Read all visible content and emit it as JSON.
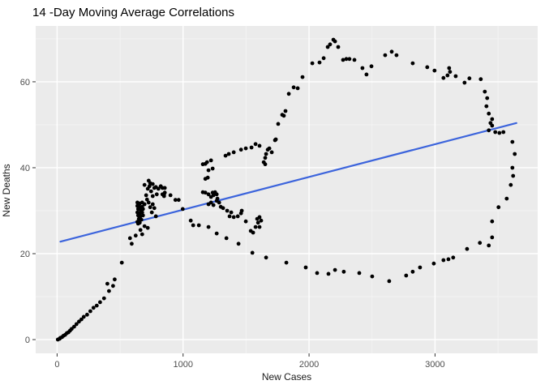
{
  "colors": {
    "figure_bg": "#FFFFFF",
    "panel_bg": "#EBEBEB",
    "grid_major": "#FFFFFF",
    "grid_minor": "#F3F3F3",
    "tick_mark": "#333333",
    "tick_label": "#4D4D4D",
    "point": "#000000",
    "trend": "#3C64DC"
  },
  "chart_data": {
    "type": "scatter",
    "title": "14 -Day Moving Average Correlations",
    "xlabel": "New Cases",
    "ylabel": "New Deaths",
    "xlim": [
      -170,
      3815
    ],
    "ylim": [
      -3.2,
      73
    ],
    "x_ticks": [
      0,
      1000,
      2000,
      3000
    ],
    "x_minor_ticks": [
      500,
      1500,
      2500,
      3500
    ],
    "y_ticks": [
      0,
      20,
      40,
      60
    ],
    "y_minor_ticks": [
      10,
      30,
      50,
      70
    ],
    "grid": "on",
    "legend": "none",
    "trend_line": {
      "x1": 26,
      "y1": 22.8,
      "x2": 3646,
      "y2": 50.4
    },
    "points": [
      [
        6,
        0
      ],
      [
        19,
        0.2
      ],
      [
        26,
        0.4
      ],
      [
        39,
        0.6
      ],
      [
        51,
        0.9
      ],
      [
        64,
        1.1
      ],
      [
        77,
        1.5
      ],
      [
        90,
        1.7
      ],
      [
        103,
        2.1
      ],
      [
        116,
        2.5
      ],
      [
        135,
        3
      ],
      [
        154,
        3.6
      ],
      [
        174,
        4.2
      ],
      [
        193,
        4.7
      ],
      [
        212,
        5.3
      ],
      [
        238,
        5.8
      ],
      [
        264,
        6.6
      ],
      [
        289,
        7.4
      ],
      [
        315,
        7.9
      ],
      [
        341,
        8.7
      ],
      [
        373,
        9.6
      ],
      [
        412,
        11.3
      ],
      [
        444,
        12.5
      ],
      [
        399,
        13
      ],
      [
        457,
        14
      ],
      [
        514,
        17.9
      ],
      [
        592,
        22.3
      ],
      [
        624,
        24.2
      ],
      [
        643,
        27
      ],
      [
        662,
        25.5
      ],
      [
        675,
        24.5
      ],
      [
        694,
        26.4
      ],
      [
        720,
        26
      ],
      [
        579,
        23.6
      ],
      [
        637,
        31.9
      ],
      [
        656,
        31.7
      ],
      [
        675,
        31.9
      ],
      [
        694,
        31.5
      ],
      [
        637,
        31.1
      ],
      [
        656,
        30.9
      ],
      [
        675,
        30.9
      ],
      [
        643,
        30.4
      ],
      [
        662,
        30.2
      ],
      [
        682,
        30.4
      ],
      [
        637,
        29.6
      ],
      [
        656,
        29.4
      ],
      [
        675,
        29.6
      ],
      [
        643,
        28.9
      ],
      [
        662,
        28.7
      ],
      [
        682,
        28.9
      ],
      [
        649,
        28.1
      ],
      [
        669,
        27.9
      ],
      [
        637,
        27.4
      ],
      [
        656,
        27.2
      ],
      [
        739,
        36.4
      ],
      [
        772,
        35.3
      ],
      [
        804,
        35.1
      ],
      [
        836,
        35.3
      ],
      [
        791,
        33.8
      ],
      [
        759,
        33.4
      ],
      [
        849,
        33.4
      ],
      [
        727,
        37
      ],
      [
        694,
        36
      ],
      [
        720,
        35.1
      ],
      [
        759,
        36.2
      ],
      [
        784,
        35.5
      ],
      [
        746,
        34.5
      ],
      [
        733,
        35.7
      ],
      [
        823,
        35.7
      ],
      [
        855,
        35.3
      ],
      [
        849,
        33.8
      ],
      [
        900,
        33.6
      ],
      [
        939,
        32.5
      ],
      [
        965,
        32.5
      ],
      [
        836,
        33.8
      ],
      [
        855,
        34.2
      ],
      [
        727,
        31.9
      ],
      [
        759,
        31.5
      ],
      [
        772,
        30.6
      ],
      [
        752,
        29.6
      ],
      [
        784,
        28.7
      ],
      [
        714,
        32.6
      ],
      [
        739,
        30.8
      ],
      [
        707,
        33.6
      ],
      [
        997,
        30.4
      ],
      [
        1061,
        27.7
      ],
      [
        1080,
        26.6
      ],
      [
        1125,
        26.6
      ],
      [
        1202,
        26.2
      ],
      [
        1267,
        24.7
      ],
      [
        1344,
        23.6
      ],
      [
        1440,
        22.3
      ],
      [
        1550,
        20.2
      ],
      [
        1659,
        19.1
      ],
      [
        1820,
        17.9
      ],
      [
        1974,
        16.8
      ],
      [
        2064,
        15.5
      ],
      [
        2154,
        15.3
      ],
      [
        2206,
        16.2
      ],
      [
        2276,
        15.8
      ],
      [
        2399,
        15.5
      ],
      [
        2501,
        14.7
      ],
      [
        2636,
        13.6
      ],
      [
        2771,
        14.9
      ],
      [
        2823,
        15.8
      ],
      [
        2881,
        16.8
      ],
      [
        2990,
        17.7
      ],
      [
        3067,
        18.5
      ],
      [
        3106,
        18.7
      ],
      [
        3144,
        19.1
      ],
      [
        3254,
        21.1
      ],
      [
        3356,
        22.5
      ],
      [
        3427,
        21.9
      ],
      [
        3453,
        23.8
      ],
      [
        3453,
        27.5
      ],
      [
        3395,
        57.7
      ],
      [
        3414,
        56.2
      ],
      [
        3408,
        54.3
      ],
      [
        3427,
        52.6
      ],
      [
        3453,
        51.3
      ],
      [
        3440,
        50.4
      ],
      [
        3453,
        49.8
      ],
      [
        3427,
        48.7
      ],
      [
        3478,
        48.3
      ],
      [
        3511,
        48.1
      ],
      [
        3543,
        48.3
      ],
      [
        3614,
        46
      ],
      [
        3633,
        43.2
      ],
      [
        3614,
        40
      ],
      [
        3620,
        38.1
      ],
      [
        3601,
        36
      ],
      [
        3569,
        32.8
      ],
      [
        3504,
        30.8
      ],
      [
        2823,
        64.3
      ],
      [
        2938,
        63.4
      ],
      [
        2996,
        62.6
      ],
      [
        3067,
        60.9
      ],
      [
        3099,
        61.5
      ],
      [
        3112,
        63.2
      ],
      [
        3119,
        62.3
      ],
      [
        3164,
        61.3
      ],
      [
        3234,
        59.8
      ],
      [
        3273,
        60.8
      ],
      [
        3363,
        60.6
      ],
      [
        1736,
        46.6
      ],
      [
        1755,
        50.2
      ],
      [
        1787,
        52.3
      ],
      [
        1800,
        52.1
      ],
      [
        1813,
        53.2
      ],
      [
        1839,
        57.2
      ],
      [
        1878,
        58.7
      ],
      [
        1910,
        58.5
      ],
      [
        1948,
        61.1
      ],
      [
        2026,
        64.3
      ],
      [
        2083,
        64.5
      ],
      [
        2116,
        65.5
      ],
      [
        2148,
        68.1
      ],
      [
        2167,
        68.7
      ],
      [
        2193,
        69.8
      ],
      [
        2206,
        69.4
      ],
      [
        2231,
        68.1
      ],
      [
        2270,
        65.1
      ],
      [
        2296,
        65.3
      ],
      [
        2321,
        65.3
      ],
      [
        2360,
        65.1
      ],
      [
        2424,
        63.2
      ],
      [
        2456,
        61.7
      ],
      [
        2495,
        63.6
      ],
      [
        2604,
        66.2
      ],
      [
        2656,
        67
      ],
      [
        2694,
        66.2
      ],
      [
        1157,
        40.8
      ],
      [
        1177,
        40.9
      ],
      [
        1190,
        41.3
      ],
      [
        1222,
        41.7
      ],
      [
        1202,
        39.4
      ],
      [
        1235,
        39.8
      ],
      [
        1177,
        37.4
      ],
      [
        1196,
        37.7
      ],
      [
        1337,
        42.8
      ],
      [
        1363,
        43.2
      ],
      [
        1402,
        43.6
      ],
      [
        1460,
        44.2
      ],
      [
        1498,
        44.5
      ],
      [
        1543,
        44.7
      ],
      [
        1575,
        45.5
      ],
      [
        1607,
        45.1
      ],
      [
        1640,
        41.3
      ],
      [
        1652,
        42.3
      ],
      [
        1652,
        40.8
      ],
      [
        1659,
        43.2
      ],
      [
        1672,
        44.2
      ],
      [
        1685,
        44.5
      ],
      [
        1704,
        43.6
      ],
      [
        1730,
        46.4
      ],
      [
        1157,
        34.3
      ],
      [
        1177,
        34.2
      ],
      [
        1202,
        33.8
      ],
      [
        1222,
        33.2
      ],
      [
        1235,
        34.2
      ],
      [
        1241,
        33.6
      ],
      [
        1254,
        34.3
      ],
      [
        1267,
        33.8
      ],
      [
        1267,
        32.3
      ],
      [
        1273,
        32.8
      ],
      [
        1286,
        31.9
      ],
      [
        1299,
        30.9
      ],
      [
        1202,
        31.5
      ],
      [
        1222,
        31.9
      ],
      [
        1241,
        31.3
      ],
      [
        1318,
        30.6
      ],
      [
        1350,
        30
      ],
      [
        1382,
        29.6
      ],
      [
        1369,
        28.7
      ],
      [
        1402,
        28.5
      ],
      [
        1434,
        28.7
      ],
      [
        1460,
        29.4
      ],
      [
        1466,
        30
      ],
      [
        1498,
        27.5
      ],
      [
        1537,
        25.3
      ],
      [
        1556,
        24.9
      ],
      [
        1575,
        26.2
      ],
      [
        1588,
        28.1
      ],
      [
        1595,
        27.2
      ],
      [
        1607,
        28.5
      ],
      [
        1607,
        26.2
      ],
      [
        1620,
        27.7
      ]
    ]
  }
}
